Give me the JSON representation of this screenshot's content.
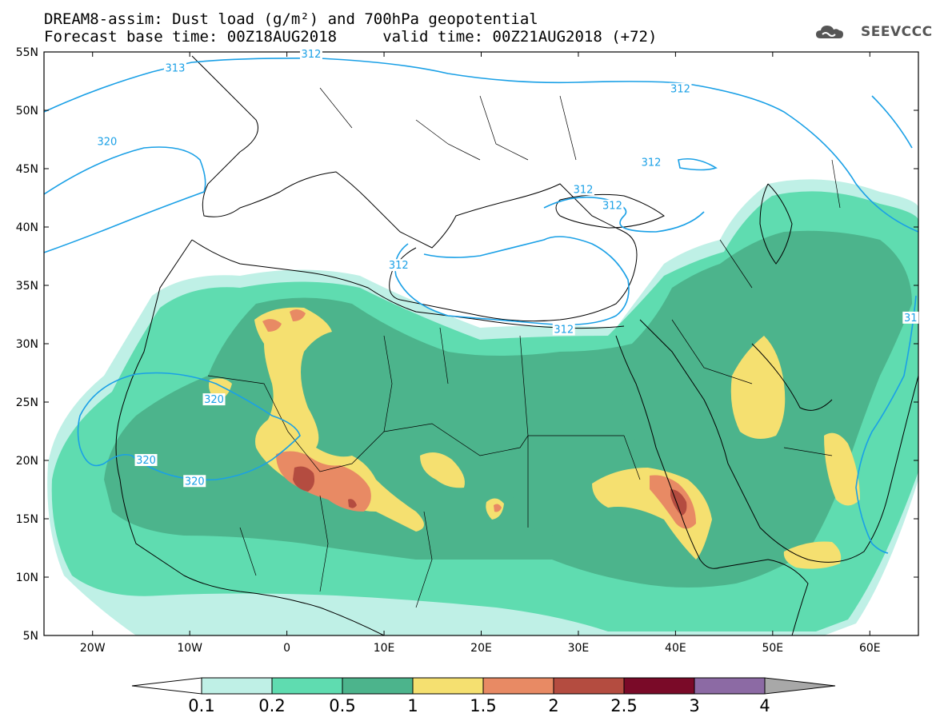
{
  "header": {
    "title_line1": "DREAM8-assim: Dust load (g/m²) and 700hPa geopotential",
    "title_line2": "Forecast base time: 00Z18AUG2018     valid time: 00Z21AUG2018 (+72)",
    "brand": "SEEVCCC"
  },
  "map": {
    "lat_labels": [
      "55N",
      "50N",
      "45N",
      "40N",
      "35N",
      "30N",
      "25N",
      "20N",
      "15N",
      "10N",
      "5N"
    ],
    "lon_labels": [
      "20W",
      "10W",
      "0",
      "10E",
      "20E",
      "30E",
      "40E",
      "50E",
      "60E"
    ],
    "lat_values": [
      55,
      50,
      45,
      40,
      35,
      30,
      25,
      20,
      15,
      10,
      5
    ],
    "lon_values": [
      -20,
      -10,
      0,
      10,
      20,
      30,
      40,
      50,
      60
    ],
    "extent": {
      "lon_min": -25,
      "lon_max": 65,
      "lat_min": 5,
      "lat_max": 55
    },
    "contour_labels": [
      {
        "text": "313",
        "lon": -11.5,
        "lat": 53.6
      },
      {
        "text": "312",
        "lon": 2.5,
        "lat": 54.8
      },
      {
        "text": "312",
        "lon": 40.5,
        "lat": 51.8
      },
      {
        "text": "320",
        "lon": -18.5,
        "lat": 47.3
      },
      {
        "text": "312",
        "lon": 37.5,
        "lat": 45.5
      },
      {
        "text": "312",
        "lon": 30.5,
        "lat": 43.2
      },
      {
        "text": "312",
        "lon": 33.5,
        "lat": 41.8
      },
      {
        "text": "312",
        "lon": 11.5,
        "lat": 36.7
      },
      {
        "text": "312",
        "lon": 28.5,
        "lat": 31.2
      },
      {
        "text": "320",
        "lon": -7.5,
        "lat": 25.2
      },
      {
        "text": "320",
        "lon": -14.5,
        "lat": 20.0
      },
      {
        "text": "320",
        "lon": -9.5,
        "lat": 18.2
      },
      {
        "text": "31",
        "lon": 64.2,
        "lat": 32.2
      }
    ],
    "colors": {
      "c1": "#bff0e6",
      "c2": "#5fdcb0",
      "c3": "#4cb48c",
      "c4": "#f5e070",
      "c5": "#e88a64",
      "c6": "#b44c40",
      "c7": "#7a0a28",
      "contour": "#1aa0e6",
      "coast": "#000000"
    }
  },
  "colorbar": {
    "labels": [
      "0.1",
      "0.2",
      "0.5",
      "1",
      "1.5",
      "2",
      "2.5",
      "3",
      "4"
    ],
    "colors": [
      "#bff0e6",
      "#5fdcb0",
      "#4cb48c",
      "#f5e070",
      "#e88a64",
      "#b44c40",
      "#7a0a28",
      "#8c6aa4"
    ],
    "left_arrow_color": "#ffffff",
    "right_arrow_color": "#a8a8a8"
  }
}
